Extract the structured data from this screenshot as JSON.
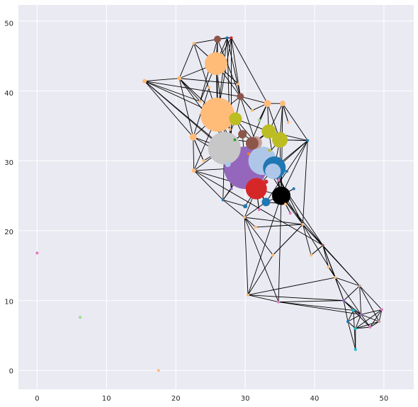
{
  "chart_data": {
    "type": "scatter",
    "title": "",
    "xlabel": "",
    "ylabel": "",
    "xlim": [
      -2.7,
      54.3
    ],
    "ylim": [
      -2.7,
      52.3
    ],
    "xticks": [
      "0",
      "10",
      "20",
      "30",
      "40",
      "50"
    ],
    "yticks": [
      "0",
      "10",
      "20",
      "30",
      "40",
      "50"
    ],
    "grid": true,
    "background": "#eaeaf2",
    "edge_color": "#000000",
    "nodes": [
      {
        "x": 0.0,
        "y": 16.8,
        "size": 2,
        "color": "#e377c2"
      },
      {
        "x": 6.2,
        "y": 7.6,
        "size": 2,
        "color": "#98df8a"
      },
      {
        "x": 17.5,
        "y": 0.0,
        "size": 2,
        "color": "#ffbb78"
      },
      {
        "x": 15.5,
        "y": 41.4,
        "size": 3,
        "color": "#ffbb78"
      },
      {
        "x": 22.6,
        "y": 46.8,
        "size": 2,
        "color": "#ffbb78"
      },
      {
        "x": 26.0,
        "y": 47.4,
        "size": 5,
        "color": "#8c564b"
      },
      {
        "x": 27.4,
        "y": 47.6,
        "size": 2,
        "color": "#1f77b4"
      },
      {
        "x": 28.0,
        "y": 47.6,
        "size": 2,
        "color": "#d62728"
      },
      {
        "x": 25.8,
        "y": 43.9,
        "size": 16,
        "color": "#ffbb78"
      },
      {
        "x": 20.5,
        "y": 41.8,
        "size": 3,
        "color": "#ffbb78"
      },
      {
        "x": 29.3,
        "y": 39.2,
        "size": 5,
        "color": "#8c564b"
      },
      {
        "x": 33.2,
        "y": 38.2,
        "size": 5,
        "color": "#ffbb78"
      },
      {
        "x": 35.4,
        "y": 38.2,
        "size": 4,
        "color": "#ffbb78"
      },
      {
        "x": 26.0,
        "y": 36.6,
        "size": 24,
        "color": "#ffbb78"
      },
      {
        "x": 28.6,
        "y": 36.0,
        "size": 9,
        "color": "#bcbd22"
      },
      {
        "x": 33.4,
        "y": 34.2,
        "size": 10,
        "color": "#bcbd22"
      },
      {
        "x": 35.0,
        "y": 33.0,
        "size": 11,
        "color": "#bcbd22"
      },
      {
        "x": 22.5,
        "y": 33.4,
        "size": 5,
        "color": "#ffbb78"
      },
      {
        "x": 29.6,
        "y": 33.8,
        "size": 6,
        "color": "#8c564b"
      },
      {
        "x": 31.5,
        "y": 32.6,
        "size": 9,
        "color": "#c49c94"
      },
      {
        "x": 31.0,
        "y": 32.5,
        "size": 9,
        "color": "#8c564b"
      },
      {
        "x": 39.0,
        "y": 32.9,
        "size": 2,
        "color": "#1f77b4"
      },
      {
        "x": 30.0,
        "y": 29.0,
        "size": 30,
        "color": "#9467bd"
      },
      {
        "x": 27.0,
        "y": 31.8,
        "size": 23,
        "color": "#c7c7c7"
      },
      {
        "x": 34.2,
        "y": 29.0,
        "size": 16,
        "color": "#1f77b4"
      },
      {
        "x": 32.5,
        "y": 30.0,
        "size": 20,
        "color": "#aec7e8"
      },
      {
        "x": 34.0,
        "y": 28.5,
        "size": 11,
        "color": "#aec7e8"
      },
      {
        "x": 22.6,
        "y": 28.6,
        "size": 3,
        "color": "#ffbb78"
      },
      {
        "x": 31.6,
        "y": 26.0,
        "size": 15,
        "color": "#d62728"
      },
      {
        "x": 33.0,
        "y": 24.1,
        "size": 6,
        "color": "#1f77b4"
      },
      {
        "x": 35.2,
        "y": 25.0,
        "size": 13,
        "color": "#000000"
      },
      {
        "x": 26.8,
        "y": 24.4,
        "size": 2,
        "color": "#1f77b4"
      },
      {
        "x": 29.9,
        "y": 21.9,
        "size": 2,
        "color": "#ffbb78"
      },
      {
        "x": 38.3,
        "y": 20.9,
        "size": 2,
        "color": "#ffbb78"
      },
      {
        "x": 41.2,
        "y": 17.9,
        "size": 2,
        "color": "#8c564b"
      },
      {
        "x": 30.4,
        "y": 10.8,
        "size": 2,
        "color": "#ffbb78"
      },
      {
        "x": 34.8,
        "y": 9.8,
        "size": 2,
        "color": "#e377c2"
      },
      {
        "x": 43.0,
        "y": 13.3,
        "size": 2,
        "color": "#ffbb78"
      },
      {
        "x": 46.5,
        "y": 12.1,
        "size": 2,
        "color": "#c49c94"
      },
      {
        "x": 44.2,
        "y": 10.0,
        "size": 2,
        "color": "#9467bd"
      },
      {
        "x": 45.6,
        "y": 8.6,
        "size": 2,
        "color": "#17becf"
      },
      {
        "x": 46.7,
        "y": 8.0,
        "size": 2,
        "color": "#9467bd"
      },
      {
        "x": 48.0,
        "y": 6.2,
        "size": 2,
        "color": "#e377c2"
      },
      {
        "x": 49.7,
        "y": 8.7,
        "size": 2,
        "color": "#e377c2"
      },
      {
        "x": 49.3,
        "y": 7.0,
        "size": 2,
        "color": "#c49c94"
      },
      {
        "x": 45.9,
        "y": 6.0,
        "size": 2,
        "color": "#17becf"
      },
      {
        "x": 44.8,
        "y": 7.0,
        "size": 2,
        "color": "#1f77b4"
      },
      {
        "x": 45.9,
        "y": 3.0,
        "size": 2,
        "color": "#17becf"
      },
      {
        "x": 27.5,
        "y": 29.5,
        "size": 4,
        "color": "#aec7e8"
      },
      {
        "x": 28.5,
        "y": 33.0,
        "size": 2,
        "color": "#2ca02c"
      },
      {
        "x": 30.5,
        "y": 31.0,
        "size": 2,
        "color": "#ff7f0e"
      },
      {
        "x": 33.5,
        "y": 31.5,
        "size": 2,
        "color": "#bcbd22"
      },
      {
        "x": 33.0,
        "y": 27.0,
        "size": 3,
        "color": "#d62728"
      },
      {
        "x": 34.8,
        "y": 27.2,
        "size": 2,
        "color": "#e377c2"
      },
      {
        "x": 36.0,
        "y": 28.5,
        "size": 2,
        "color": "#1f77b4"
      },
      {
        "x": 30.0,
        "y": 23.5,
        "size": 3,
        "color": "#1f77b4"
      },
      {
        "x": 32.0,
        "y": 23.0,
        "size": 2,
        "color": "#e377c2"
      },
      {
        "x": 35.8,
        "y": 23.8,
        "size": 2,
        "color": "#ffbb78"
      },
      {
        "x": 31.0,
        "y": 37.2,
        "size": 2,
        "color": "#ffbb78"
      },
      {
        "x": 32.0,
        "y": 35.8,
        "size": 2,
        "color": "#98df8a"
      },
      {
        "x": 36.2,
        "y": 35.5,
        "size": 2,
        "color": "#ffbb78"
      },
      {
        "x": 27.8,
        "y": 34.5,
        "size": 2,
        "color": "#ffbb78"
      },
      {
        "x": 24.0,
        "y": 30.0,
        "size": 2,
        "color": "#ffbb78"
      },
      {
        "x": 24.8,
        "y": 40.5,
        "size": 2,
        "color": "#ffbb78"
      },
      {
        "x": 23.5,
        "y": 38.5,
        "size": 2,
        "color": "#ffbb78"
      },
      {
        "x": 29.0,
        "y": 41.0,
        "size": 2,
        "color": "#ffbb78"
      },
      {
        "x": 28.0,
        "y": 26.0,
        "size": 2,
        "color": "#9467bd"
      },
      {
        "x": 37.0,
        "y": 26.0,
        "size": 2,
        "color": "#1f77b4"
      },
      {
        "x": 36.5,
        "y": 22.5,
        "size": 2,
        "color": "#e377c2"
      },
      {
        "x": 31.5,
        "y": 20.5,
        "size": 2,
        "color": "#ffbb78"
      },
      {
        "x": 34.0,
        "y": 16.5,
        "size": 2,
        "color": "#ffbb78"
      },
      {
        "x": 39.5,
        "y": 16.5,
        "size": 2,
        "color": "#ffbb78"
      },
      {
        "x": 42.0,
        "y": 14.8,
        "size": 2,
        "color": "#ffbb78"
      }
    ],
    "edges": [
      [
        3,
        9
      ],
      [
        3,
        13
      ],
      [
        3,
        17
      ],
      [
        3,
        23
      ],
      [
        3,
        10
      ],
      [
        3,
        64
      ],
      [
        3,
        22
      ],
      [
        4,
        5
      ],
      [
        4,
        8
      ],
      [
        4,
        9
      ],
      [
        4,
        13
      ],
      [
        4,
        65
      ],
      [
        5,
        6
      ],
      [
        5,
        7
      ],
      [
        5,
        8
      ],
      [
        5,
        13
      ],
      [
        5,
        10
      ],
      [
        5,
        64
      ],
      [
        6,
        7
      ],
      [
        6,
        8
      ],
      [
        6,
        10
      ],
      [
        6,
        13
      ],
      [
        6,
        66
      ],
      [
        7,
        8
      ],
      [
        7,
        10
      ],
      [
        7,
        11
      ],
      [
        7,
        13
      ],
      [
        7,
        66
      ],
      [
        8,
        9
      ],
      [
        8,
        10
      ],
      [
        8,
        13
      ],
      [
        8,
        64
      ],
      [
        8,
        65
      ],
      [
        8,
        66
      ],
      [
        9,
        13
      ],
      [
        9,
        17
      ],
      [
        9,
        64
      ],
      [
        9,
        65
      ],
      [
        9,
        22
      ],
      [
        10,
        11
      ],
      [
        10,
        13
      ],
      [
        10,
        14
      ],
      [
        10,
        19
      ],
      [
        10,
        58
      ],
      [
        11,
        12
      ],
      [
        11,
        15
      ],
      [
        11,
        16
      ],
      [
        11,
        58
      ],
      [
        11,
        59
      ],
      [
        12,
        15
      ],
      [
        12,
        16
      ],
      [
        12,
        21
      ],
      [
        12,
        60
      ],
      [
        13,
        14
      ],
      [
        13,
        17
      ],
      [
        13,
        22
      ],
      [
        13,
        23
      ],
      [
        13,
        27
      ],
      [
        13,
        61
      ],
      [
        14,
        15
      ],
      [
        14,
        18
      ],
      [
        14,
        19
      ],
      [
        14,
        23
      ],
      [
        15,
        16
      ],
      [
        15,
        19
      ],
      [
        15,
        20
      ],
      [
        15,
        21
      ],
      [
        16,
        21
      ],
      [
        16,
        24
      ],
      [
        16,
        25
      ],
      [
        17,
        22
      ],
      [
        17,
        23
      ],
      [
        17,
        27
      ],
      [
        17,
        62
      ],
      [
        18,
        19
      ],
      [
        18,
        22
      ],
      [
        18,
        23
      ],
      [
        18,
        49
      ],
      [
        19,
        20
      ],
      [
        19,
        25
      ],
      [
        19,
        22
      ],
      [
        20,
        22
      ],
      [
        20,
        25
      ],
      [
        20,
        50
      ],
      [
        21,
        24
      ],
      [
        21,
        26
      ],
      [
        21,
        29
      ],
      [
        21,
        30
      ],
      [
        21,
        16
      ],
      [
        22,
        24
      ],
      [
        22,
        25
      ],
      [
        22,
        27
      ],
      [
        22,
        28
      ],
      [
        22,
        29
      ],
      [
        22,
        31
      ],
      [
        22,
        48
      ],
      [
        23,
        27
      ],
      [
        23,
        28
      ],
      [
        23,
        31
      ],
      [
        23,
        62
      ],
      [
        24,
        26
      ],
      [
        24,
        28
      ],
      [
        24,
        30
      ],
      [
        24,
        54
      ],
      [
        25,
        26
      ],
      [
        25,
        28
      ],
      [
        25,
        51
      ],
      [
        27,
        31
      ],
      [
        27,
        28
      ],
      [
        27,
        34
      ],
      [
        28,
        29
      ],
      [
        28,
        30
      ],
      [
        28,
        32
      ],
      [
        28,
        55
      ],
      [
        28,
        56
      ],
      [
        29,
        30
      ],
      [
        29,
        32
      ],
      [
        29,
        57
      ],
      [
        30,
        33
      ],
      [
        30,
        34
      ],
      [
        30,
        35
      ],
      [
        30,
        36
      ],
      [
        30,
        67
      ],
      [
        30,
        68
      ],
      [
        31,
        32
      ],
      [
        31,
        55
      ],
      [
        31,
        66
      ],
      [
        32,
        33
      ],
      [
        32,
        35
      ],
      [
        32,
        36
      ],
      [
        32,
        69
      ],
      [
        32,
        70
      ],
      [
        33,
        34
      ],
      [
        33,
        37
      ],
      [
        33,
        38
      ],
      [
        33,
        70
      ],
      [
        33,
        71
      ],
      [
        34,
        37
      ],
      [
        34,
        38
      ],
      [
        34,
        39
      ],
      [
        34,
        71
      ],
      [
        34,
        72
      ],
      [
        35,
        36
      ],
      [
        35,
        37
      ],
      [
        35,
        39
      ],
      [
        35,
        70
      ],
      [
        36,
        39
      ],
      [
        36,
        40
      ],
      [
        36,
        41
      ],
      [
        37,
        38
      ],
      [
        37,
        39
      ],
      [
        37,
        41
      ],
      [
        37,
        72
      ],
      [
        38,
        39
      ],
      [
        38,
        43
      ],
      [
        38,
        44
      ],
      [
        38,
        41
      ],
      [
        39,
        40
      ],
      [
        39,
        41
      ],
      [
        39,
        42
      ],
      [
        39,
        46
      ],
      [
        40,
        41
      ],
      [
        40,
        46
      ],
      [
        40,
        47
      ],
      [
        41,
        42
      ],
      [
        41,
        43
      ],
      [
        41,
        44
      ],
      [
        41,
        45
      ],
      [
        41,
        46
      ],
      [
        42,
        43
      ],
      [
        42,
        44
      ],
      [
        42,
        45
      ],
      [
        43,
        44
      ],
      [
        43,
        45
      ],
      [
        44,
        45
      ],
      [
        44,
        42
      ],
      [
        45,
        46
      ],
      [
        45,
        47
      ],
      [
        46,
        47
      ],
      [
        48,
        22
      ],
      [
        48,
        23
      ],
      [
        49,
        19
      ],
      [
        50,
        25
      ],
      [
        51,
        26
      ],
      [
        52,
        28
      ],
      [
        53,
        30
      ],
      [
        54,
        24
      ],
      [
        56,
        28
      ],
      [
        57,
        30
      ],
      [
        58,
        10
      ],
      [
        59,
        11
      ],
      [
        60,
        12
      ],
      [
        61,
        13
      ],
      [
        62,
        17
      ],
      [
        63,
        17
      ],
      [
        66,
        11
      ],
      [
        67,
        30
      ],
      [
        68,
        30
      ],
      [
        69,
        33
      ],
      [
        70,
        33
      ],
      [
        71,
        34
      ],
      [
        72,
        37
      ],
      [
        24,
        33
      ],
      [
        25,
        33
      ],
      [
        26,
        34
      ],
      [
        16,
        30
      ],
      [
        12,
        30
      ],
      [
        21,
        33
      ],
      [
        15,
        24
      ],
      [
        20,
        24
      ]
    ]
  }
}
